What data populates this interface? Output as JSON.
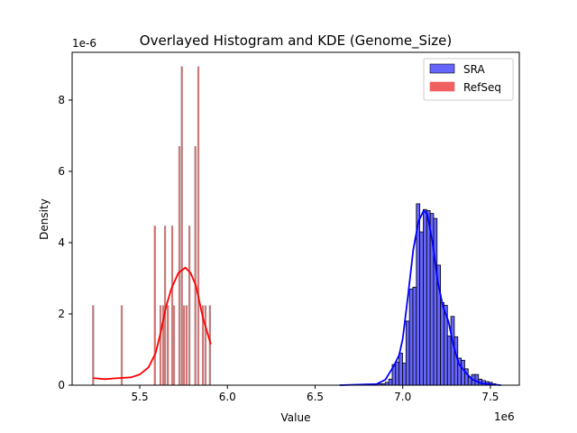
{
  "chart_data": {
    "type": "bar",
    "title": "Overlayed Histogram and KDE (Genome_Size)",
    "xlabel": "Value",
    "ylabel": "Density",
    "x_offset_label": "1e6",
    "y_offset_label": "1e-6",
    "xlim": [
      5.114,
      7.665
    ],
    "ylim": [
      0,
      9.34
    ],
    "x_ticks": [
      5.5,
      6.0,
      6.5,
      7.0,
      7.5
    ],
    "x_tick_labels": [
      "5.5",
      "6.0",
      "6.5",
      "7.0",
      "7.5"
    ],
    "y_ticks": [
      0,
      2,
      4,
      6,
      8
    ],
    "y_tick_labels": [
      "0",
      "2",
      "4",
      "6",
      "8"
    ],
    "grid": false,
    "legend_position": "top-right",
    "series": [
      {
        "name": "SRA",
        "color": "#0000ff",
        "bar_fill": "#6666ff",
        "bin_start": 6.861,
        "bin_width": 0.0197,
        "values": [
          0.04,
          0.04,
          0.08,
          0.17,
          0.58,
          0.65,
          0.9,
          0.62,
          1.8,
          2.7,
          2.75,
          5.09,
          4.3,
          4.93,
          4.9,
          4.82,
          4.68,
          3.37,
          2.32,
          2.24,
          1.38,
          1.93,
          1.36,
          0.76,
          0.7,
          0.46,
          0.23,
          0.3,
          0.3,
          0.17,
          0.13,
          0.1,
          0.08,
          0.04
        ],
        "kde": [
          [
            6.64,
            0
          ],
          [
            6.85,
            0.03
          ],
          [
            6.9,
            0.15
          ],
          [
            6.95,
            0.55
          ],
          [
            6.98,
            0.85
          ],
          [
            7.0,
            1.3
          ],
          [
            7.03,
            2.5
          ],
          [
            7.06,
            3.8
          ],
          [
            7.09,
            4.6
          ],
          [
            7.12,
            4.9
          ],
          [
            7.14,
            4.8
          ],
          [
            7.17,
            4.0
          ],
          [
            7.2,
            2.9
          ],
          [
            7.23,
            2.2
          ],
          [
            7.26,
            1.8
          ],
          [
            7.29,
            1.1
          ],
          [
            7.32,
            0.6
          ],
          [
            7.36,
            0.35
          ],
          [
            7.4,
            0.15
          ],
          [
            7.45,
            0.05
          ],
          [
            7.56,
            0
          ]
        ]
      },
      {
        "name": "RefSeq",
        "color": "#ff0000",
        "bar_fill": "#f06060",
        "bin_width": 0.009,
        "bars": [
          [
            5.234,
            2.235
          ],
          [
            5.397,
            2.235
          ],
          [
            5.586,
            4.47
          ],
          [
            5.618,
            2.235
          ],
          [
            5.634,
            2.235
          ],
          [
            5.644,
            4.47
          ],
          [
            5.66,
            2.235
          ],
          [
            5.685,
            4.47
          ],
          [
            5.695,
            2.235
          ],
          [
            5.726,
            6.7
          ],
          [
            5.74,
            8.94
          ],
          [
            5.752,
            2.235
          ],
          [
            5.767,
            2.235
          ],
          [
            5.783,
            4.47
          ],
          [
            5.817,
            6.7
          ],
          [
            5.834,
            8.94
          ],
          [
            5.86,
            2.235
          ],
          [
            5.875,
            2.235
          ],
          [
            5.9,
            2.235
          ]
        ],
        "kde": [
          [
            5.234,
            0.2
          ],
          [
            5.3,
            0.17
          ],
          [
            5.38,
            0.2
          ],
          [
            5.45,
            0.22
          ],
          [
            5.5,
            0.3
          ],
          [
            5.55,
            0.5
          ],
          [
            5.59,
            0.9
          ],
          [
            5.62,
            1.5
          ],
          [
            5.65,
            2.2
          ],
          [
            5.68,
            2.7
          ],
          [
            5.72,
            3.15
          ],
          [
            5.76,
            3.3
          ],
          [
            5.79,
            3.15
          ],
          [
            5.82,
            2.8
          ],
          [
            5.86,
            1.9
          ],
          [
            5.905,
            1.15
          ]
        ]
      }
    ]
  }
}
